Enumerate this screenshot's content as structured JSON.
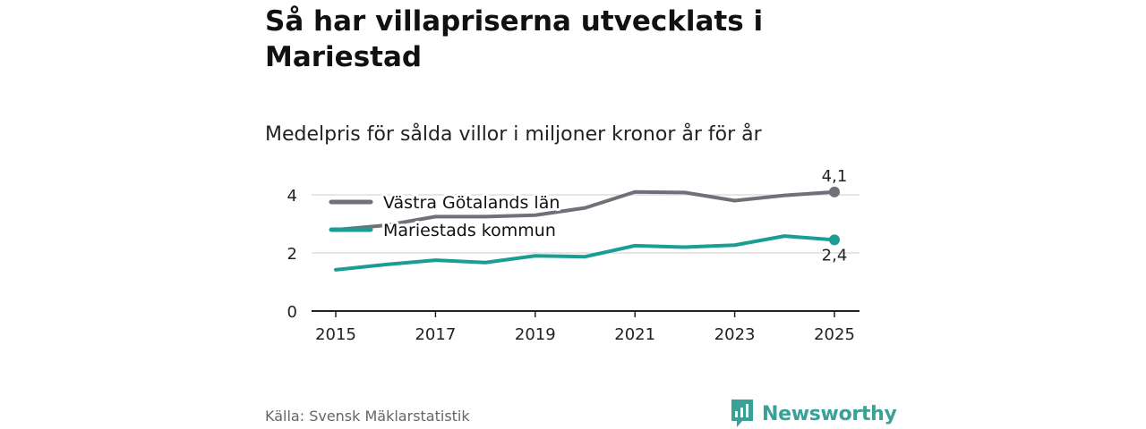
{
  "title": "Så har villapriserna utvecklats i Mariestad",
  "subtitle": "Medelpris för sålda villor i miljoner kronor år för år",
  "source": "Källa: Svensk Mäklarstatistik",
  "brand": "Newsworthy",
  "colors": {
    "series_vg": "#707078",
    "series_mariestad": "#1a9e94",
    "grid": "#dddddd",
    "axis": "#222222",
    "brand": "#3aa196"
  },
  "chart_data": {
    "type": "line",
    "title": "Så har villapriserna utvecklats i Mariestad",
    "subtitle": "Medelpris för sålda villor i miljoner kronor år för år",
    "xlabel": "",
    "ylabel": "",
    "x": [
      2015,
      2016,
      2017,
      2018,
      2019,
      2020,
      2021,
      2022,
      2023,
      2024,
      2025
    ],
    "xticks": [
      "2015",
      "2017",
      "2019",
      "2021",
      "2023",
      "2025"
    ],
    "yticks": [
      "0",
      "2",
      "4"
    ],
    "ylim": [
      0,
      4.3
    ],
    "grid": true,
    "legend_position": "top-left",
    "series": [
      {
        "name": "Västra Götalands län",
        "values": [
          2.8,
          2.95,
          3.25,
          3.25,
          3.3,
          3.55,
          4.1,
          4.08,
          3.8,
          3.98,
          4.1
        ],
        "end_label": "4,1"
      },
      {
        "name": "Mariestads kommun",
        "values": [
          1.42,
          1.6,
          1.75,
          1.67,
          1.9,
          1.87,
          2.25,
          2.2,
          2.27,
          2.58,
          2.45
        ],
        "end_label": "2,4"
      }
    ]
  }
}
